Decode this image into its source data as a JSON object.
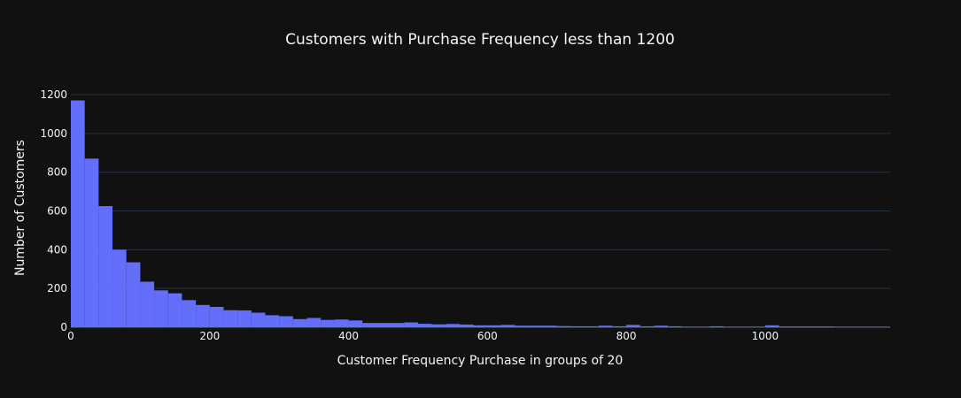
{
  "chart_data": {
    "type": "bar",
    "title": "Customers with Purchase Frequency less than 1200",
    "xlabel": "Customer Frequency Purchase in groups of 20",
    "ylabel": "Number of Customers",
    "bin_size": 20,
    "x_start": 0,
    "xlim": [
      0,
      1180
    ],
    "ylim": [
      0,
      1200
    ],
    "x_ticks": [
      0,
      200,
      400,
      600,
      800,
      1000
    ],
    "y_ticks": [
      0,
      200,
      400,
      600,
      800,
      1000,
      1200
    ],
    "grid": true,
    "series": [
      {
        "values": [
          1170,
          870,
          625,
          400,
          335,
          235,
          190,
          175,
          140,
          115,
          105,
          88,
          87,
          75,
          62,
          57,
          42,
          48,
          38,
          40,
          35,
          22,
          22,
          22,
          25,
          18,
          15,
          17,
          14,
          10,
          10,
          12,
          8,
          8,
          8,
          6,
          5,
          5,
          8,
          5,
          12,
          5,
          8,
          5,
          3,
          3,
          5,
          3,
          3,
          3,
          10,
          4,
          4,
          4,
          4,
          3,
          3,
          3,
          3
        ]
      }
    ],
    "colors": {
      "background": "#111111",
      "bar": "#636efa",
      "grid": "#283442",
      "text": "#f2f5fa"
    }
  }
}
